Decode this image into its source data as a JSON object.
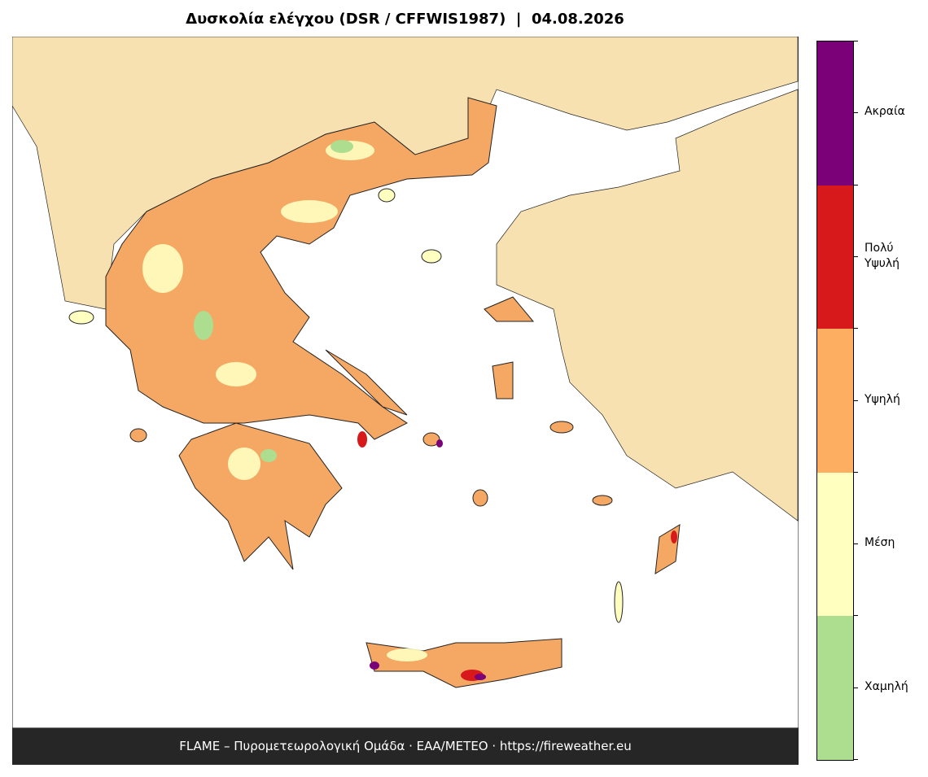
{
  "title": "Δυσκολία ελέγχου (DSR / CFFWIS1987)  |  04.08.2026",
  "legend": {
    "classes": [
      {
        "label": "Ακραία",
        "color": "#7a0177"
      },
      {
        "label": "Πολύ Υψυλή",
        "color": "#d7191c"
      },
      {
        "label": "Υψηλή",
        "color": "#fdae61"
      },
      {
        "label": "Μέση",
        "color": "#ffffc0"
      },
      {
        "label": "Χαμηλή",
        "color": "#addd8e"
      }
    ]
  },
  "footer": "FLAME – Πυρομετεωρολογική Ομάδα · ΕΑΑ/METEO · https://fireweather.eu"
}
